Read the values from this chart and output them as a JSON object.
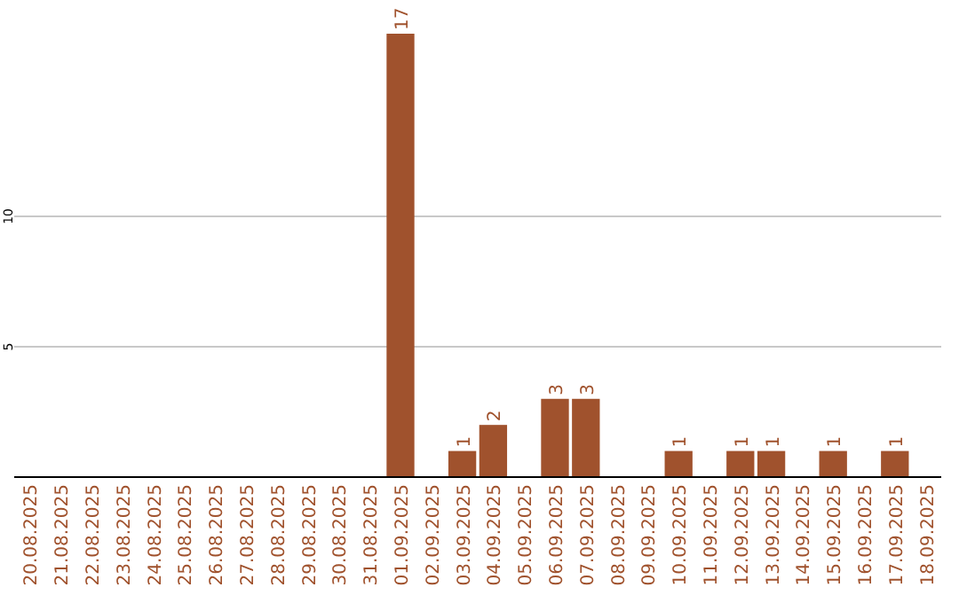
{
  "chart_data": {
    "type": "bar",
    "categories": [
      "20.08.2025",
      "21.08.2025",
      "22.08.2025",
      "23.08.2025",
      "24.08.2025",
      "25.08.2025",
      "26.08.2025",
      "27.08.2025",
      "28.08.2025",
      "29.08.2025",
      "30.08.2025",
      "31.08.2025",
      "01.09.2025",
      "02.09.2025",
      "03.09.2025",
      "04.09.2025",
      "05.09.2025",
      "06.09.2025",
      "07.09.2025",
      "08.09.2025",
      "09.09.2025",
      "10.09.2025",
      "11.09.2025",
      "12.09.2025",
      "13.09.2025",
      "14.09.2025",
      "15.09.2025",
      "16.09.2025",
      "17.09.2025",
      "18.09.2025"
    ],
    "values": [
      0,
      0,
      0,
      0,
      0,
      0,
      0,
      0,
      0,
      0,
      0,
      0,
      17,
      0,
      1,
      2,
      0,
      3,
      3,
      0,
      0,
      1,
      0,
      1,
      1,
      0,
      1,
      0,
      1,
      0
    ],
    "value_labels": [
      null,
      null,
      null,
      null,
      null,
      null,
      null,
      null,
      null,
      null,
      null,
      null,
      "17",
      null,
      "1",
      "2",
      null,
      "3",
      "3",
      null,
      null,
      "1",
      null,
      "1",
      "1",
      null,
      "1",
      null,
      "1",
      null
    ],
    "color": "#a0522d",
    "ylim": [
      0,
      17
    ],
    "yticks": [
      5,
      10
    ],
    "grid": "y"
  }
}
